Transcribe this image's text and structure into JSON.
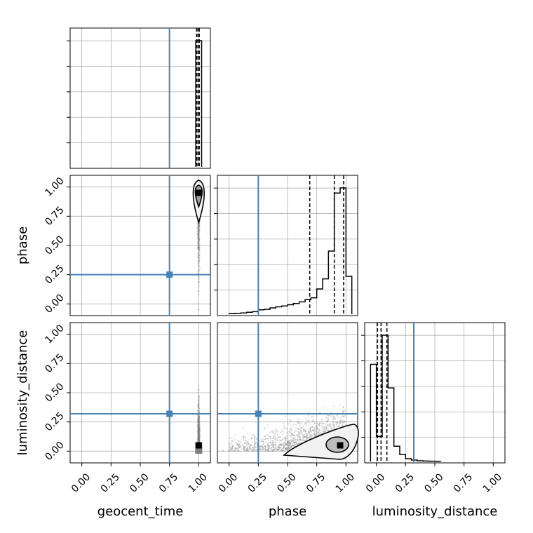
{
  "chart_data": {
    "type": "corner",
    "parameters": [
      "geocent_time",
      "phase",
      "luminosity_distance"
    ],
    "axis_range": [
      -0.1,
      1.1
    ],
    "tick_labels": [
      "0.00",
      "0.25",
      "0.50",
      "0.75",
      "1.00"
    ],
    "ticks": [
      0,
      0.25,
      0.5,
      0.75,
      1.0
    ],
    "grid": true,
    "truths": {
      "geocent_time": 0.75,
      "phase": 0.25,
      "luminosity_distance": 0.32
    },
    "colors": {
      "truth": "#4682b4",
      "hist": "#000000",
      "grid": "#b0b0b0",
      "points": "#7f7f7f"
    },
    "histograms": {
      "geocent_time": {
        "bins": [
          0.975,
          1.0,
          1.025
        ],
        "counts": [
          1.0,
          1.0
        ],
        "quantiles": [
          0.981,
          0.993,
          1.005
        ]
      },
      "phase": {
        "bins": [
          0.0,
          0.05,
          0.1,
          0.15,
          0.2,
          0.25,
          0.3,
          0.35,
          0.4,
          0.45,
          0.5,
          0.55,
          0.6,
          0.65,
          0.7,
          0.75,
          0.8,
          0.85,
          0.9,
          0.95,
          1.0,
          1.05
        ],
        "counts": [
          0.005,
          0.007,
          0.01,
          0.015,
          0.02,
          0.035,
          0.038,
          0.05,
          0.058,
          0.065,
          0.075,
          0.085,
          0.098,
          0.115,
          0.13,
          0.2,
          0.28,
          0.5,
          0.96,
          1.0,
          0.3
        ],
        "quantiles": [
          0.69,
          0.9,
          0.98
        ]
      },
      "luminosity_distance": {
        "bins": [
          -0.05,
          0.0,
          0.05,
          0.1,
          0.15,
          0.2,
          0.25,
          0.3,
          0.35,
          0.4,
          0.45,
          0.5,
          0.55
        ],
        "counts": [
          0.7,
          0.18,
          0.91,
          0.53,
          0.11,
          0.05,
          0.02,
          0.01,
          0.005,
          0.003,
          0.002,
          0.001
        ],
        "quantiles": [
          0.01,
          0.04,
          0.09
        ]
      }
    },
    "joint": {
      "phase_vs_geocent_time": {
        "mode": [
          1.0,
          0.95
        ],
        "spread_x": 0.01,
        "spread_y": 0.45
      },
      "luminosity_distance_vs_geocent_time": {
        "mode": [
          1.0,
          0.05
        ],
        "spread_x": 0.01,
        "spread_y": 0.35
      },
      "luminosity_distance_vs_phase": {
        "mode": [
          0.95,
          0.05
        ],
        "spread_x": 0.6,
        "spread_y": 0.25
      }
    }
  }
}
